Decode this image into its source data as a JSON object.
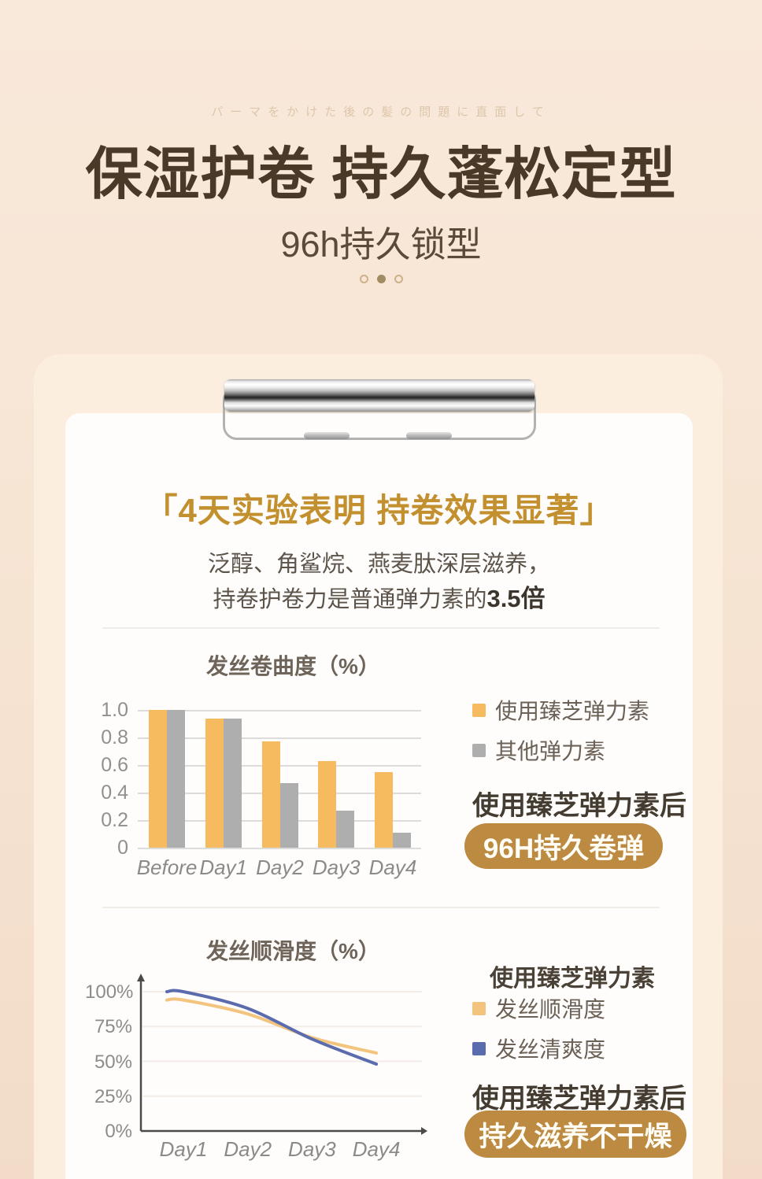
{
  "hero": {
    "tagline": "パーマをかけた後の髪の問題に直面して",
    "title": "保湿护卷 持久蓬松定型",
    "subtitle": "96h持久锁型",
    "carousel_dots": [
      "inactive",
      "active",
      "inactive"
    ]
  },
  "card": {
    "headline": "「4天实验表明 持卷效果显著」",
    "desc_line1": "泛醇、角鲨烷、燕麦肽深层滋养，",
    "desc_line2_prefix": "持卷护卷力是普通弹力素的",
    "desc_line2_bold": "3.5倍"
  },
  "chart_data": [
    {
      "type": "bar",
      "title": "发丝卷曲度（%）",
      "categories": [
        "Before",
        "Day1",
        "Day2",
        "Day3",
        "Day4"
      ],
      "series": [
        {
          "name": "使用臻芝弹力素",
          "color": "#f6bb5f",
          "values": [
            1.0,
            0.94,
            0.77,
            0.63,
            0.55
          ]
        },
        {
          "name": "其他弹力素",
          "color": "#aeaeae",
          "values": [
            1.0,
            0.94,
            0.47,
            0.27,
            0.11
          ]
        }
      ],
      "ylim": [
        0,
        1.0
      ],
      "yticks": [
        0,
        0.2,
        0.4,
        0.6,
        0.8,
        1.0
      ],
      "grid": true,
      "legend_position": "right"
    },
    {
      "type": "line",
      "title": "发丝顺滑度（%）",
      "x": [
        "Day1",
        "Day2",
        "Day3",
        "Day4"
      ],
      "series": [
        {
          "name": "发丝顺滑度",
          "color": "#f2c47d",
          "values": [
            94,
            84,
            67,
            56
          ]
        },
        {
          "name": "发丝清爽度",
          "color": "#5b6cae",
          "values": [
            100,
            88,
            66,
            48
          ]
        }
      ],
      "ylim": [
        0,
        100
      ],
      "ytick_labels": [
        "0%",
        "25%",
        "50%",
        "75%",
        "100%"
      ],
      "grid": false,
      "legend_position": "right"
    }
  ],
  "section1": {
    "result_label": "使用臻芝弹力素后",
    "result_button": "96H持久卷弹"
  },
  "section2": {
    "legend_header": "使用臻芝弹力素",
    "result_label": "使用臻芝弹力素后",
    "result_button": "持久滋养不干燥"
  },
  "colors": {
    "accent_gold": "#bc8a40",
    "headline_gold": "#c3902f",
    "title_brown": "#4a3927",
    "background_peach": "#f6e3d2",
    "paper_white": "#fffdfb"
  }
}
